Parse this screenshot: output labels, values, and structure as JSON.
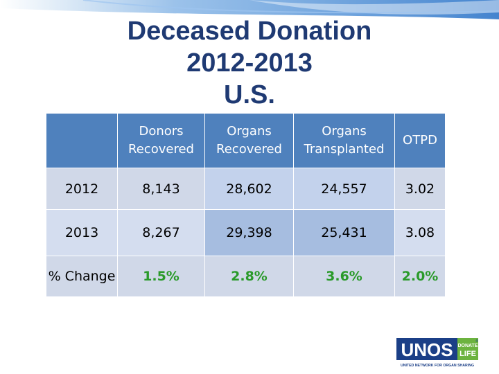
{
  "title": {
    "line1": "Deceased Donation",
    "line2": "2012-2013",
    "line3": "U.S."
  },
  "table": {
    "headers": [
      {
        "line1": "",
        "line2": ""
      },
      {
        "line1": "Donors",
        "line2": "Recovered"
      },
      {
        "line1": "Organs",
        "line2": "Recovered"
      },
      {
        "line1": "Organs",
        "line2": "Transplanted"
      },
      {
        "line1": "OTPD",
        "line2": ""
      }
    ],
    "rows": [
      {
        "label": "2012",
        "values": [
          "8,143",
          "28,602",
          "24,557",
          "3.02"
        ]
      },
      {
        "label": "2013",
        "values": [
          "8,267",
          "29,398",
          "25,431",
          "3.08"
        ]
      },
      {
        "label": "% Change",
        "values": [
          "1.5%",
          "2.8%",
          "3.6%",
          "2.0%"
        ]
      }
    ]
  },
  "logo": {
    "main": "UNOS",
    "badge_top": "DONATE",
    "badge_bottom": "LIFE",
    "tagline": "UNITED NETWORK FOR ORGAN SHARING",
    "registered": "®"
  },
  "colors": {
    "title": "#1f3a73",
    "header": "#4f81bd",
    "green": "#2a9a2a"
  }
}
